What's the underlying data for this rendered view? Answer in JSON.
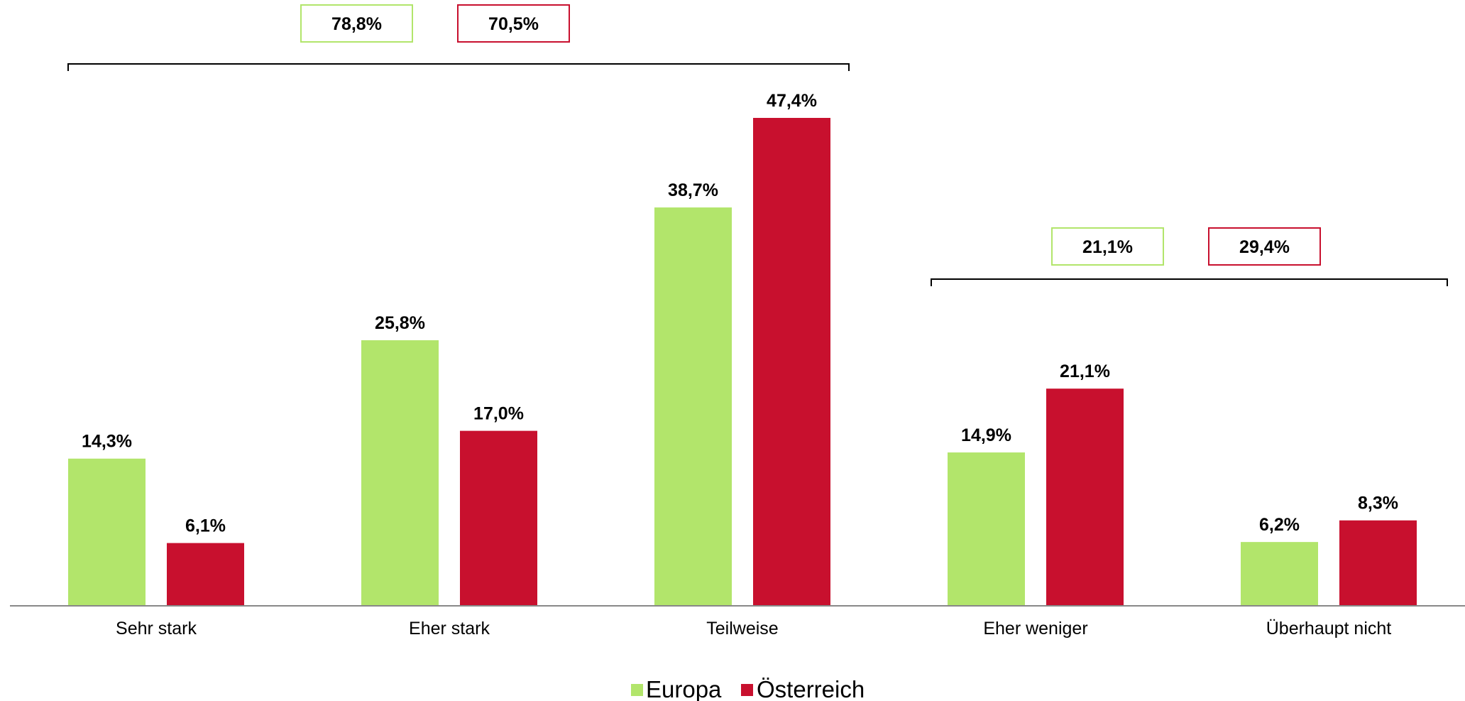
{
  "chart_data": {
    "type": "bar",
    "categories": [
      "Sehr stark",
      "Eher stark",
      "Teilweise",
      "Eher weniger",
      "Überhaupt nicht"
    ],
    "series": [
      {
        "name": "Europa",
        "color": "#b2e56b",
        "values": [
          14.3,
          25.8,
          38.7,
          14.9,
          6.2
        ],
        "labels": [
          "14,3%",
          "25,8%",
          "38,7%",
          "14,9%",
          "6,2%"
        ]
      },
      {
        "name": "Österreich",
        "color": "#c8102e",
        "values": [
          6.1,
          17.0,
          47.4,
          21.1,
          8.3
        ],
        "labels": [
          "6,1%",
          "17,0%",
          "47,4%",
          "21,1%",
          "8,3%"
        ]
      }
    ],
    "ylim": [
      0,
      47.4
    ],
    "grid": false,
    "legend": "bottom-center",
    "group_totals": [
      {
        "categories": [
          "Sehr stark",
          "Eher stark",
          "Teilweise"
        ],
        "values": [
          "78,8%",
          "70,5%"
        ]
      },
      {
        "categories": [
          "Eher weniger",
          "Überhaupt nicht"
        ],
        "values": [
          "21,1%",
          "29,4%"
        ]
      }
    ]
  }
}
